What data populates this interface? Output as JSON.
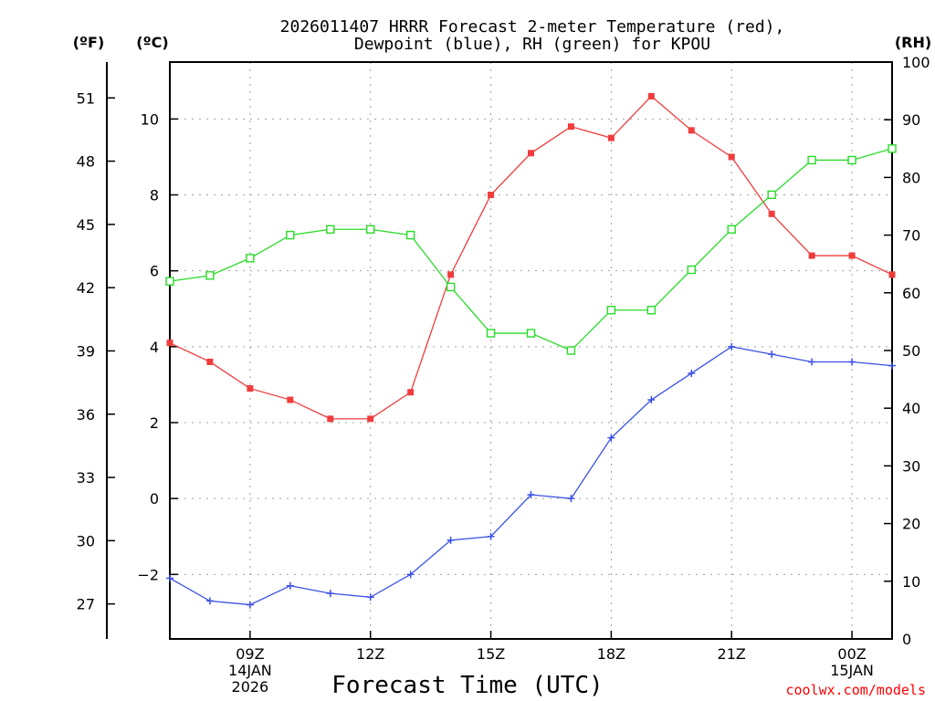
{
  "chart_data": {
    "type": "line",
    "title_lines": [
      "2026011407 HRRR Forecast 2-meter Temperature (red),",
      "Dewpoint (blue), RH (green) for KPOU"
    ],
    "xlabel": "Forecast Time (UTC)",
    "credit": "coolwx.com/models",
    "x_hours": [
      7,
      8,
      9,
      10,
      11,
      12,
      13,
      14,
      15,
      16,
      17,
      18,
      19,
      20,
      21,
      22,
      23,
      24,
      25
    ],
    "xlim": [
      7,
      25
    ],
    "x_ticks": [
      {
        "x": 9,
        "lines": [
          "09Z",
          "14JAN",
          "2026"
        ]
      },
      {
        "x": 12,
        "lines": [
          "12Z"
        ]
      },
      {
        "x": 15,
        "lines": [
          "15Z"
        ]
      },
      {
        "x": 18,
        "lines": [
          "18Z"
        ]
      },
      {
        "x": 21,
        "lines": [
          "21Z"
        ]
      },
      {
        "x": 24,
        "lines": [
          "00Z",
          "15JAN"
        ]
      }
    ],
    "left_axis_c": {
      "unit": "(ºC)",
      "ylim": [
        -3.7,
        11.5
      ],
      "ticks": [
        -2,
        0,
        2,
        4,
        6,
        8,
        10
      ],
      "tick_labels": [
        "−2",
        "0",
        "2",
        "4",
        "6",
        "8",
        "10"
      ]
    },
    "left_axis_f": {
      "unit": "(ºF)",
      "ticks": [
        27,
        30,
        33,
        36,
        39,
        42,
        45,
        48,
        51
      ]
    },
    "right_axis_rh": {
      "unit": "(RH)",
      "ylim": [
        0,
        100
      ],
      "ticks": [
        0,
        10,
        20,
        30,
        40,
        50,
        60,
        70,
        80,
        90,
        100
      ]
    },
    "series": [
      {
        "name": "Temperature",
        "color": "#f03c3c",
        "marker": "filled-square",
        "axis": "celsius",
        "values": [
          4.1,
          3.6,
          2.9,
          2.6,
          2.1,
          2.1,
          2.8,
          5.9,
          8.0,
          9.1,
          9.8,
          9.5,
          10.6,
          9.7,
          9.0,
          7.5,
          6.4,
          6.4,
          5.9
        ]
      },
      {
        "name": "Dewpoint",
        "color": "#3c50e6",
        "marker": "plus",
        "axis": "celsius",
        "values": [
          -2.1,
          -2.7,
          -2.8,
          -2.3,
          -2.5,
          -2.6,
          -2.0,
          -1.1,
          -1.0,
          0.1,
          0.0,
          1.6,
          2.6,
          3.3,
          4.0,
          3.8,
          3.6,
          3.6,
          3.5
        ]
      },
      {
        "name": "Relative Humidity",
        "color": "#28dc28",
        "marker": "open-square",
        "axis": "rh",
        "values": [
          62,
          63,
          66,
          70,
          71,
          71,
          70,
          61,
          53,
          53,
          50,
          57,
          57,
          64,
          71,
          77,
          83,
          83,
          85
        ]
      }
    ]
  }
}
